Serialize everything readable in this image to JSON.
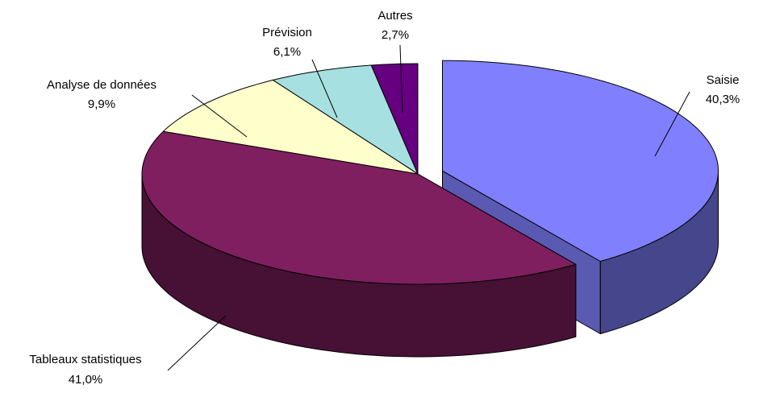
{
  "chart_data": {
    "type": "pie",
    "style": "3d-exploded",
    "title": "",
    "slices": [
      {
        "name": "Saisie",
        "value": 40.3,
        "label": "40,3%",
        "color": "#8080ff"
      },
      {
        "name": "Tableaux statistiques",
        "value": 41.0,
        "label": "41,0%",
        "color": "#7f1f5f"
      },
      {
        "name": "Analyse de données",
        "value": 9.9,
        "label": "9,9%",
        "color": "#ffffcc"
      },
      {
        "name": "Prévision",
        "value": 6.1,
        "label": "6,1%",
        "color": "#a6e0e0"
      },
      {
        "name": "Autres",
        "value": 2.7,
        "label": "2,7%",
        "color": "#660080"
      }
    ],
    "legend": "none",
    "grid": false
  }
}
